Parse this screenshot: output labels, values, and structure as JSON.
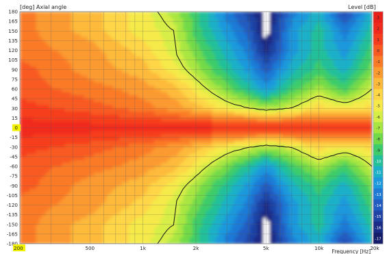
{
  "header": {
    "left_unit": "[deg]",
    "left_title": "Axial angle",
    "right_title": "Level",
    "right_unit": "[dB]"
  },
  "chart_data": {
    "type": "heatmap",
    "title": "",
    "ylabel": "Axial angle",
    "yunit": "[deg]",
    "xlabel": "Frequency",
    "xunit": "[Hz]",
    "x_scale": "log",
    "xlim": [
      200,
      20000
    ],
    "ylim": [
      -180,
      180
    ],
    "grid": true,
    "x_tick_labels": [
      {
        "f": 200,
        "label": "200"
      },
      {
        "f": 500,
        "label": "500"
      },
      {
        "f": 1000,
        "label": "1k"
      },
      {
        "f": 2000,
        "label": "2k"
      },
      {
        "f": 5000,
        "label": "5k"
      },
      {
        "f": 10000,
        "label": "10k"
      },
      {
        "f": 20000,
        "label": "20k"
      }
    ],
    "y_ticks": [
      180,
      165,
      150,
      135,
      120,
      105,
      90,
      75,
      60,
      45,
      30,
      15,
      0,
      -15,
      -30,
      -45,
      -60,
      -75,
      -90,
      -105,
      -120,
      -135,
      -150,
      -165,
      -180
    ],
    "y_tick_labels": [
      "180",
      "165",
      "150",
      "135",
      "120",
      "105",
      "90",
      "75",
      "60",
      "45",
      "30",
      "15",
      "0",
      "-15",
      "-30",
      "-45",
      "-60",
      "-75",
      "-90",
      "-105",
      "-120",
      "-135",
      "-150",
      "-165",
      "-180"
    ],
    "highlighted_tick": "0",
    "color_scale": {
      "label": "Level",
      "unit": "[dB]",
      "levels": [
        {
          "label": "3",
          "color": "#e8201a"
        },
        {
          "label": "2",
          "color": "#f02a1c"
        },
        {
          "label": "1",
          "color": "#f63c1e"
        },
        {
          "label": "0",
          "color": "#f85a22"
        },
        {
          "label": "-1",
          "color": "#fa7a28"
        },
        {
          "label": "-2",
          "color": "#fc9a30"
        },
        {
          "label": "-3",
          "color": "#fdba3a"
        },
        {
          "label": "-4",
          "color": "#fed646"
        },
        {
          "label": "-5",
          "color": "#f5ea4a"
        },
        {
          "label": "-6",
          "color": "#d6ee46"
        },
        {
          "label": "-7",
          "color": "#a8e642"
        },
        {
          "label": "-8",
          "color": "#72da48"
        },
        {
          "label": "-9",
          "color": "#3ecc6a"
        },
        {
          "label": "-10",
          "color": "#22c09a"
        },
        {
          "label": "-11",
          "color": "#1cb0c8"
        },
        {
          "label": "-12",
          "color": "#1c98dc"
        },
        {
          "label": "-13",
          "color": "#1f7ad6"
        },
        {
          "label": "-14",
          "color": "#225cc0"
        },
        {
          "label": "-15",
          "color": "#1f42a4"
        },
        {
          "label": "-16",
          "color": "#1a2c86"
        },
        {
          "label": "-17",
          "color": "#141c6a"
        }
      ]
    },
    "contour_level_db": -6,
    "data_description_levels": {
      "note": "Level (dB) sampled at axial angles for frequencies",
      "frequencies_hz": [
        200,
        500,
        1000,
        1500,
        2000,
        3000,
        4000,
        5000,
        7000,
        10000,
        14000,
        20000
      ],
      "rows": [
        {
          "angle": 180,
          "db": [
            -1,
            -3,
            -5,
            -7,
            -9,
            -13,
            -15,
            -17,
            -13,
            -11,
            -15,
            -11
          ]
        },
        {
          "angle": 150,
          "db": [
            -1,
            -3,
            -5,
            -6,
            -9,
            -12,
            -14,
            -17,
            -12,
            -10,
            -13,
            -10
          ]
        },
        {
          "angle": 120,
          "db": [
            -1,
            -2,
            -4,
            -6,
            -8,
            -11,
            -13,
            -16,
            -12,
            -10,
            -12,
            -9
          ]
        },
        {
          "angle": 90,
          "db": [
            0,
            -2,
            -3,
            -5,
            -7,
            -10,
            -12,
            -14,
            -11,
            -9,
            -11,
            -8
          ]
        },
        {
          "angle": 60,
          "db": [
            0,
            -1,
            -2,
            -3,
            -5,
            -8,
            -10,
            -12,
            -9,
            -7,
            -9,
            -6
          ]
        },
        {
          "angle": 30,
          "db": [
            1,
            0,
            -1,
            -2,
            -3,
            -5,
            -6,
            -7,
            -6,
            -4,
            -5,
            -4
          ]
        },
        {
          "angle": 0,
          "db": [
            2,
            2,
            2,
            2,
            2,
            2,
            2,
            2,
            2,
            2,
            2,
            1
          ]
        },
        {
          "angle": -30,
          "db": [
            1,
            0,
            -1,
            -2,
            -3,
            -5,
            -6,
            -7,
            -6,
            -4,
            -5,
            -4
          ]
        },
        {
          "angle": -60,
          "db": [
            0,
            -1,
            -2,
            -3,
            -5,
            -8,
            -10,
            -12,
            -9,
            -7,
            -9,
            -6
          ]
        },
        {
          "angle": -90,
          "db": [
            0,
            -2,
            -3,
            -5,
            -7,
            -10,
            -12,
            -14,
            -11,
            -9,
            -11,
            -8
          ]
        },
        {
          "angle": -120,
          "db": [
            -1,
            -2,
            -4,
            -6,
            -8,
            -11,
            -13,
            -16,
            -12,
            -10,
            -12,
            -9
          ]
        },
        {
          "angle": -150,
          "db": [
            -1,
            -3,
            -5,
            -6,
            -9,
            -12,
            -14,
            -17,
            -12,
            -10,
            -13,
            -10
          ]
        },
        {
          "angle": -180,
          "db": [
            -1,
            -3,
            -5,
            -7,
            -9,
            -13,
            -15,
            -17,
            -13,
            -11,
            -15,
            -11
          ]
        }
      ]
    }
  }
}
